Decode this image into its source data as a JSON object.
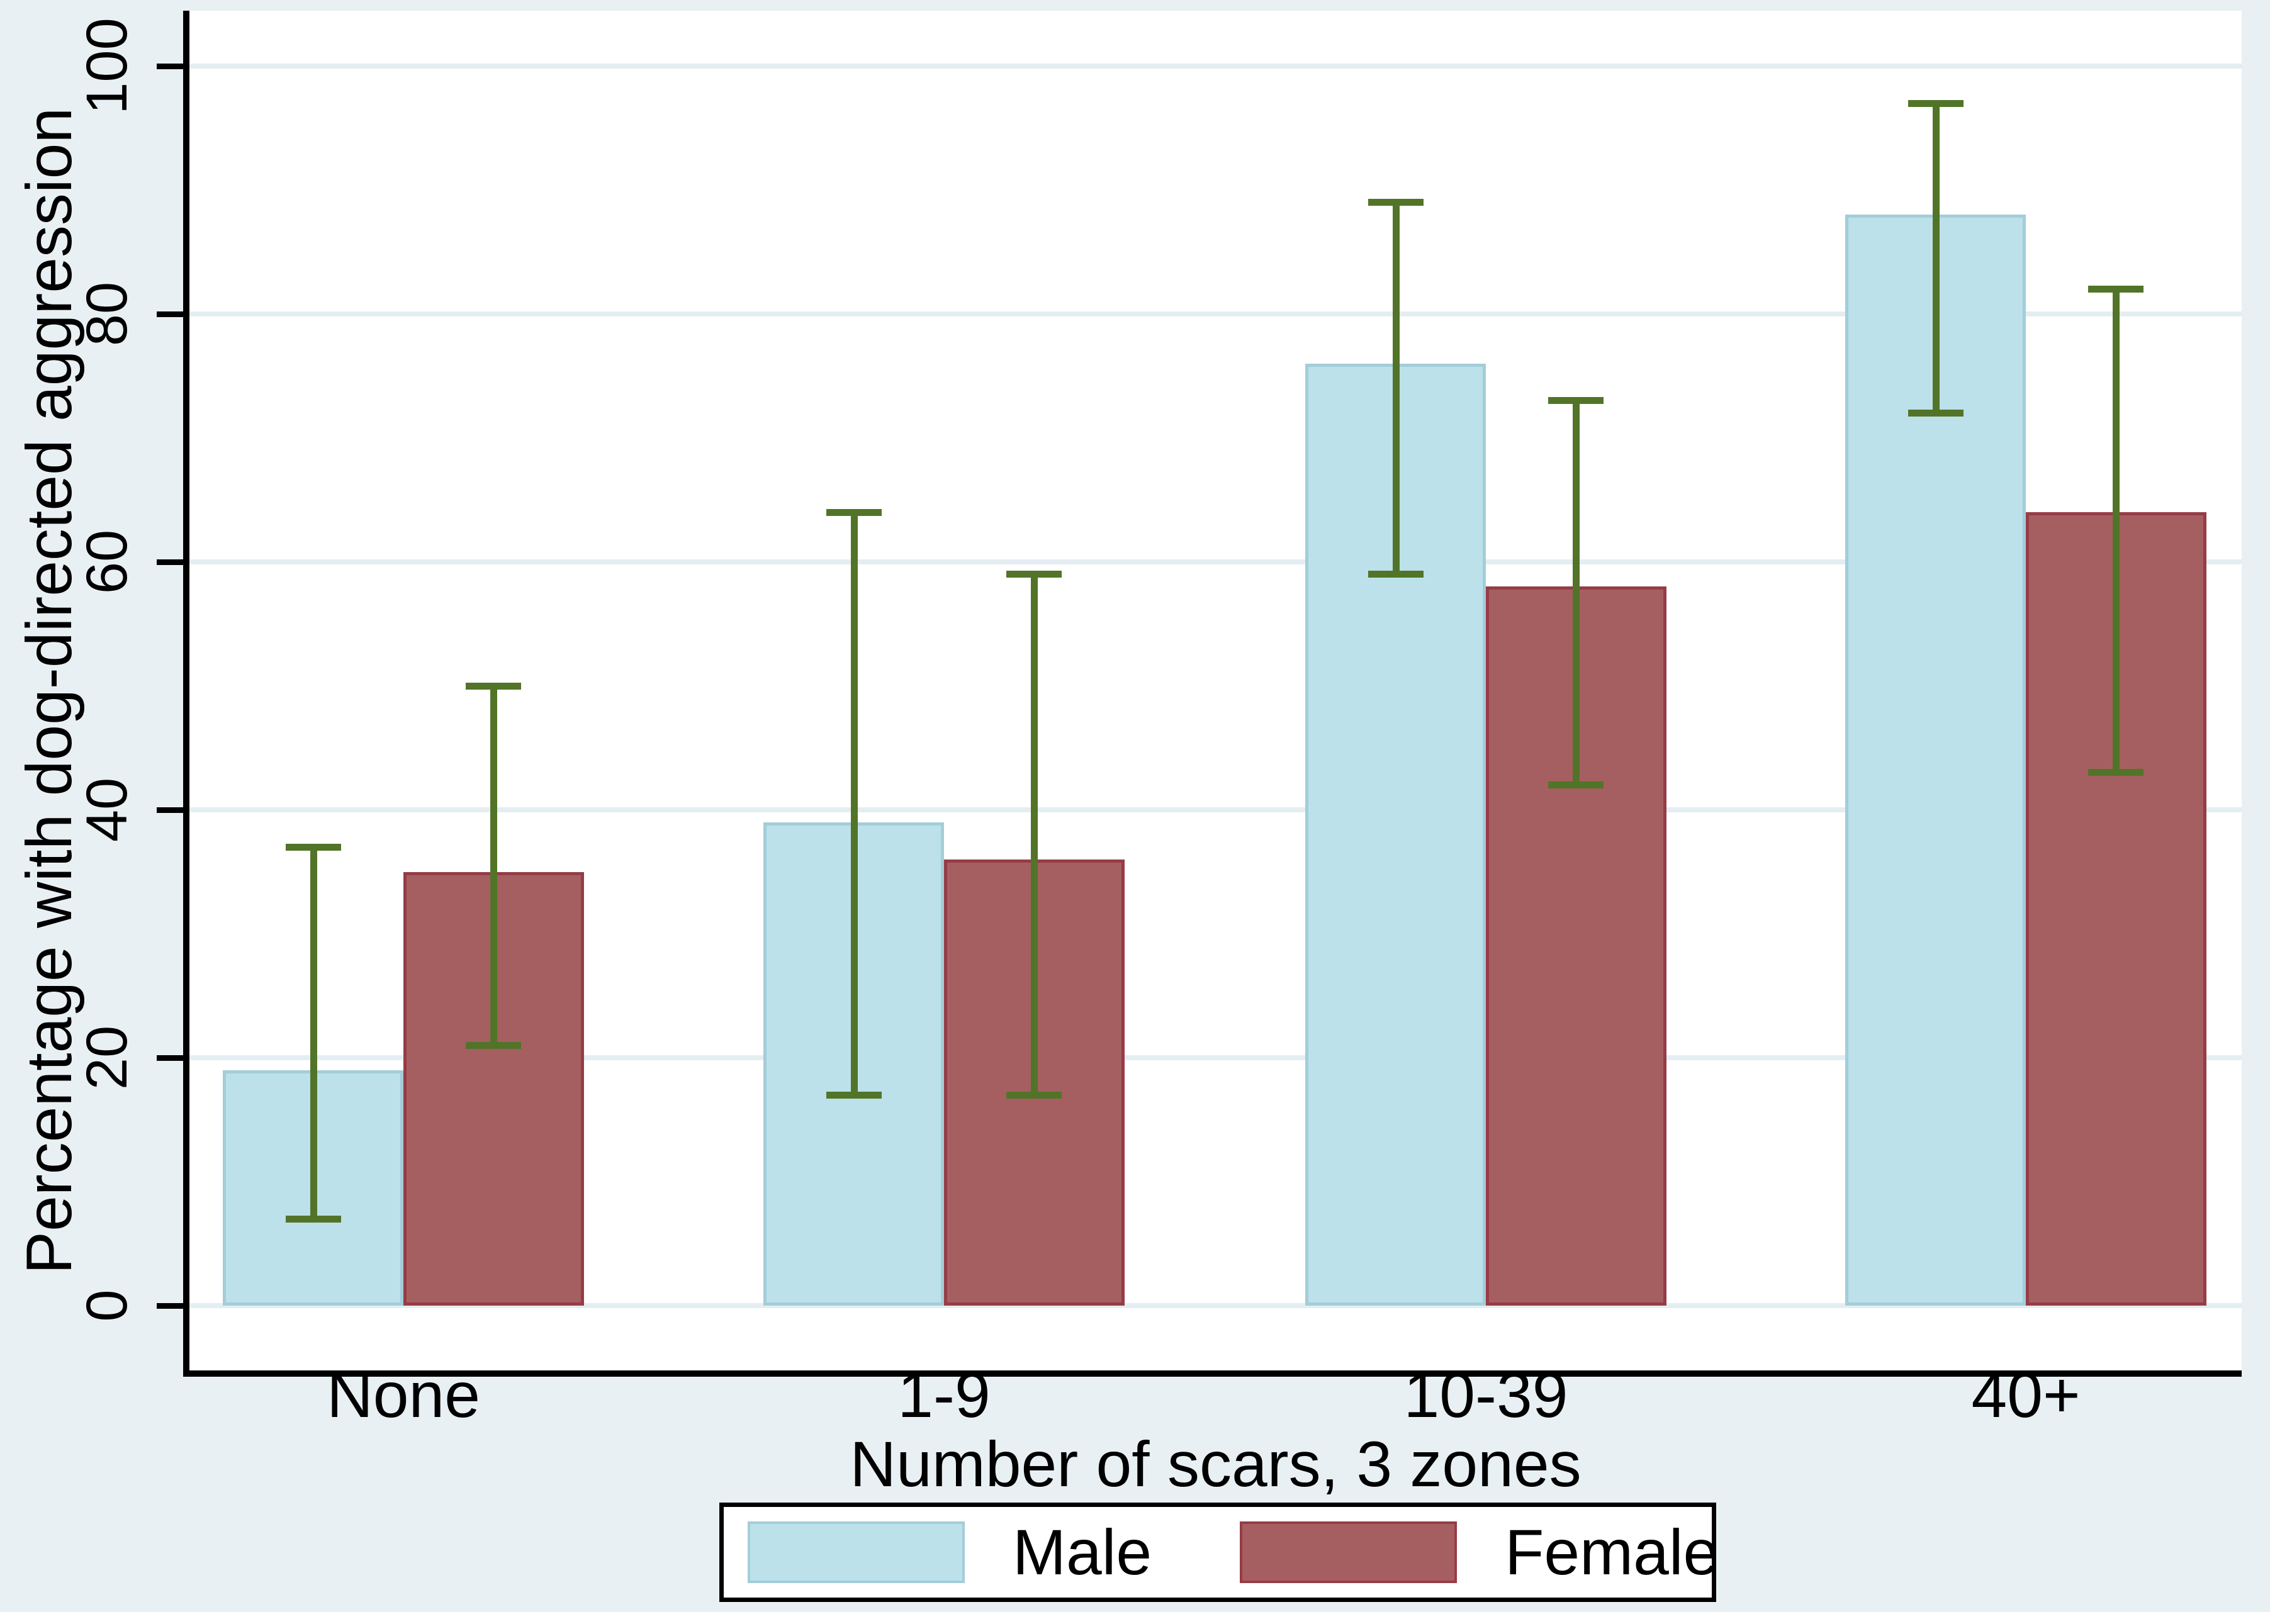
{
  "chart_data": {
    "type": "bar",
    "subtype": "grouped-vertical-with-error-bars",
    "title": "",
    "xlabel": "Number of scars, 3 zones",
    "ylabel": "Percentage with dog-directed aggression",
    "categories": [
      "None",
      "1-9",
      "10-39",
      "40+"
    ],
    "series": [
      {
        "name": "Male",
        "fill_color": "#bce1ea",
        "border_color": "#a3cdd9",
        "values": [
          19,
          39,
          76,
          88
        ],
        "ci_low": [
          7,
          17,
          59,
          72
        ],
        "ci_high": [
          37,
          64,
          89,
          97
        ]
      },
      {
        "name": "Female",
        "fill_color": "#a55f61",
        "border_color": "#963c46",
        "values": [
          35,
          36,
          58,
          64
        ],
        "ci_low": [
          21,
          17,
          42,
          43
        ],
        "ci_high": [
          50,
          59,
          73,
          82
        ]
      }
    ],
    "yticks": [
      0,
      20,
      40,
      60,
      80,
      100
    ],
    "ylim": [
      0,
      100
    ],
    "grid": true,
    "gridline_color": "#e4eef2",
    "errorbar_color": "#527428",
    "background_color": "#e9f0f3",
    "plot_background_color": "#ffffff",
    "axis_color": "#000000",
    "legend_position": "bottom",
    "ytick_label_orientation": "vertical"
  },
  "legend": {
    "items": [
      {
        "label": "Male"
      },
      {
        "label": "Female"
      }
    ]
  }
}
